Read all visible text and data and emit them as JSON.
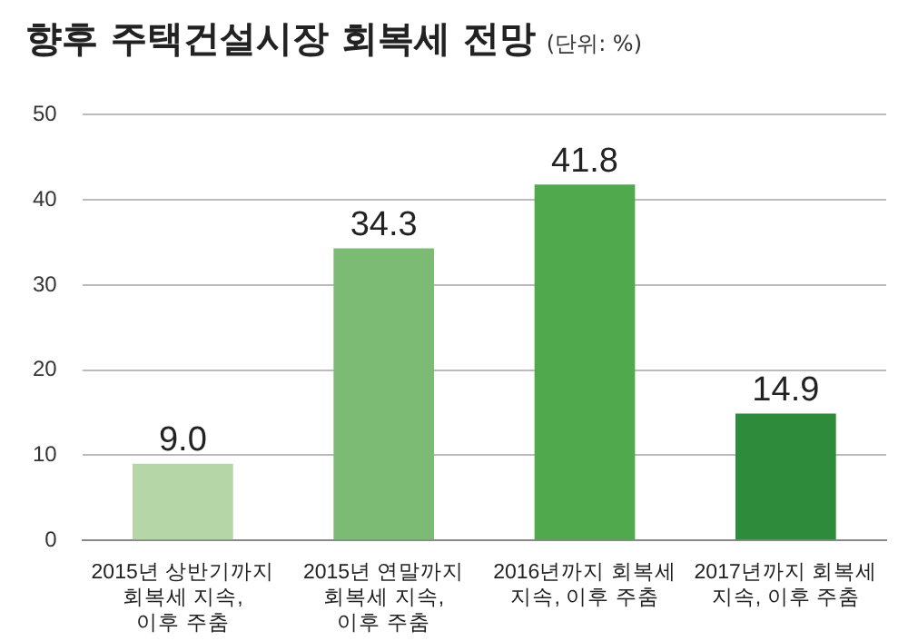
{
  "chart_data": {
    "type": "bar",
    "title": "향후 주택건설시장 회복세 전망",
    "subtitle": "(단위: %)",
    "categories": [
      "2015년 상반기까지\n회복세 지속,\n이후 주춤",
      "2015년 연말까지\n회복세 지속,\n이후 주춤",
      "2016년까지 회복세\n지속, 이후 주춤",
      "2017년까지 회복세\n지속, 이후 주춤"
    ],
    "values": [
      9.0,
      34.3,
      41.8,
      14.9
    ],
    "colors": [
      "#b5d6a7",
      "#7cbb73",
      "#50a94c",
      "#2e8b3c"
    ],
    "value_labels": [
      "9.0",
      "34.3",
      "41.8",
      "14.9"
    ],
    "ylim": [
      0,
      50
    ],
    "yticks": [
      0,
      10,
      20,
      30,
      40,
      50
    ],
    "grid": "y",
    "legend": false
  }
}
